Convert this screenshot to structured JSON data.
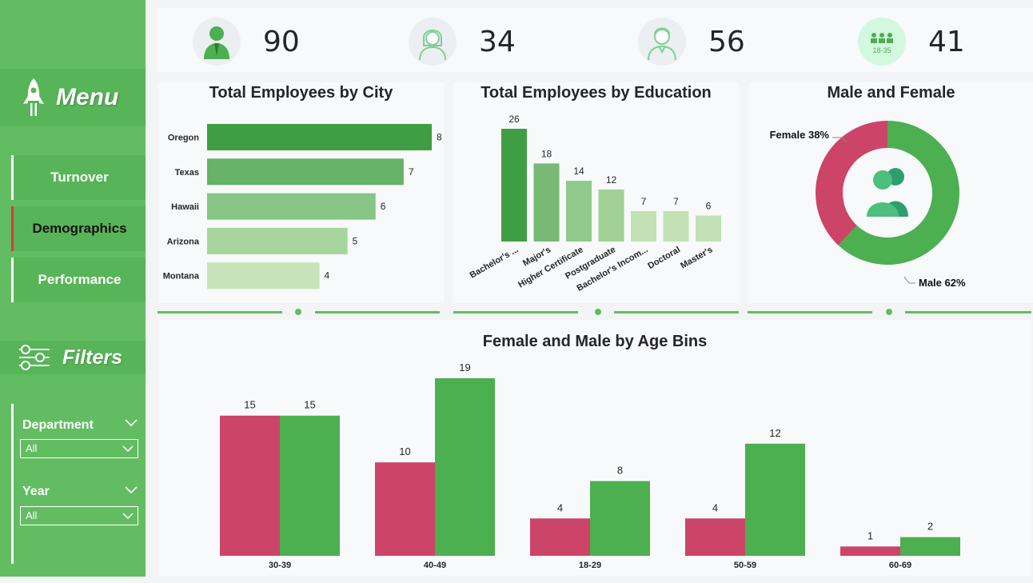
{
  "sidebar": {
    "menu_title": "Menu",
    "nav": [
      {
        "label": "Turnover",
        "active": false
      },
      {
        "label": "Demographics",
        "active": true
      },
      {
        "label": "Performance",
        "active": false
      }
    ],
    "filters_title": "Filters",
    "filters": [
      {
        "label": "Department",
        "value": "All"
      },
      {
        "label": "Year",
        "value": "All"
      }
    ]
  },
  "kpis": [
    {
      "icon": "employee-icon",
      "value": "90"
    },
    {
      "icon": "female-icon",
      "value": "34"
    },
    {
      "icon": "male-icon",
      "value": "56"
    },
    {
      "icon": "age-range-icon",
      "value": "41",
      "icon_text": "18-35"
    }
  ],
  "cards": {
    "city_title": "Total Employees by City",
    "education_title": "Total Employees by Education",
    "gender_title": "Male and Female",
    "age_title": "Female and Male by Age Bins"
  },
  "colors": {
    "sidebar": "#62bd62",
    "female": "#cc4468",
    "male": "#4caf50"
  },
  "chart_data": [
    {
      "type": "bar",
      "orientation": "horizontal",
      "title": "Total Employees by City",
      "categories": [
        "Oregon",
        "Texas",
        "Hawaii",
        "Arizona",
        "Montana"
      ],
      "values": [
        8,
        7,
        6,
        5,
        4
      ],
      "colors": [
        "#3f9e44",
        "#66b266",
        "#86c583",
        "#a6d59e",
        "#c6e4ba"
      ]
    },
    {
      "type": "bar",
      "title": "Total Employees by Education",
      "categories": [
        "Bachelor's ...",
        "Major's",
        "Higher Certificate",
        "Postgraduate",
        "Bachelor's Incom...",
        "Doctoral",
        "Master's"
      ],
      "values": [
        26,
        18,
        14,
        12,
        7,
        7,
        6
      ],
      "colors": [
        "#3f9e44",
        "#77b975",
        "#90c98a",
        "#a1d196",
        "#c2e2b6",
        "#c2e2b6",
        "#c2e2b6"
      ]
    },
    {
      "type": "pie",
      "title": "Male and Female",
      "donut": true,
      "slices": [
        {
          "label": "Female",
          "value": 38,
          "display": "Female 38%",
          "color": "#cc4468"
        },
        {
          "label": "Male",
          "value": 62,
          "display": "Male 62%",
          "color": "#4caf50"
        }
      ]
    },
    {
      "type": "bar",
      "title": "Female and Male by Age Bins",
      "categories": [
        "30-39",
        "40-49",
        "18-29",
        "50-59",
        "60-69"
      ],
      "series": [
        {
          "values": [
            15,
            10,
            4,
            4,
            1
          ],
          "color": "#cc4468"
        },
        {
          "values": [
            15,
            19,
            8,
            12,
            2
          ],
          "color": "#4caf50"
        }
      ]
    }
  ]
}
